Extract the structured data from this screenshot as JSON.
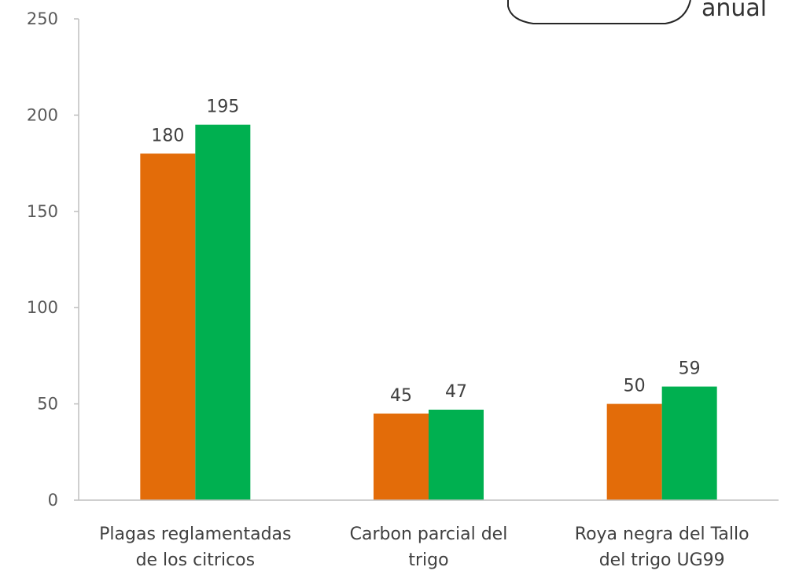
{
  "chart_data": {
    "type": "bar",
    "categories": [
      [
        "Plagas reglamentadas",
        "de los citricos"
      ],
      [
        "Carbon parcial del",
        "trigo"
      ],
      [
        "Roya negra del Tallo",
        "del trigo UG99"
      ]
    ],
    "series": [
      {
        "values": [
          180,
          45,
          50
        ],
        "color": "#E36C09"
      },
      {
        "values": [
          195,
          47,
          59
        ],
        "color": "#00B050"
      }
    ],
    "ylim": [
      0,
      250
    ],
    "yticks": [
      0,
      50,
      100,
      150,
      200,
      250
    ],
    "grid": false,
    "legend": "none",
    "callout_text": "anual"
  }
}
